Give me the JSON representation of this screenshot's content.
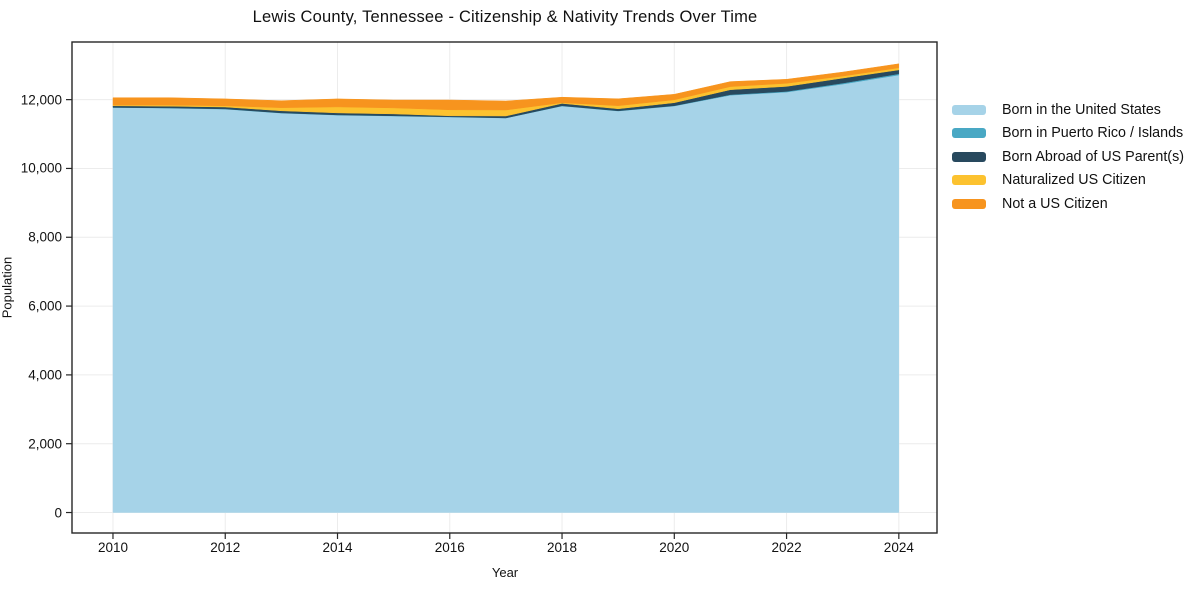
{
  "chart_data": {
    "type": "area",
    "stacked": true,
    "title": "Lewis County, Tennessee - Citizenship & Nativity Trends Over Time",
    "xlabel": "Year",
    "ylabel": "Population",
    "x": [
      2010,
      2011,
      2012,
      2013,
      2014,
      2015,
      2016,
      2017,
      2018,
      2019,
      2020,
      2021,
      2022,
      2023,
      2024
    ],
    "series": [
      {
        "name": "Born in the United States",
        "color": "#a6d3e8",
        "values": [
          11770,
          11755,
          11725,
          11610,
          11550,
          11525,
          11495,
          11465,
          11815,
          11670,
          11815,
          12130,
          12220,
          12450,
          12715
        ]
      },
      {
        "name": "Born in Puerto Rico / Islands",
        "color": "#49a8c4",
        "values": [
          5,
          5,
          5,
          5,
          5,
          5,
          5,
          5,
          5,
          5,
          10,
          15,
          20,
          30,
          35
        ]
      },
      {
        "name": "Born Abroad of US Parent(s)",
        "color": "#28495e",
        "values": [
          45,
          50,
          55,
          60,
          60,
          55,
          30,
          55,
          70,
          60,
          85,
          145,
          145,
          145,
          115
        ]
      },
      {
        "name": "Naturalized US Citizen",
        "color": "#fcc22f",
        "values": [
          25,
          30,
          35,
          90,
          175,
          175,
          175,
          175,
          20,
          90,
          85,
          90,
          90,
          60,
          60
        ]
      },
      {
        "name": "Not a US Citizen",
        "color": "#f7941e",
        "values": [
          210,
          215,
          200,
          205,
          230,
          230,
          285,
          260,
          160,
          200,
          160,
          145,
          115,
          115,
          115
        ]
      }
    ],
    "xticks": {
      "values": [
        2010,
        2012,
        2014,
        2016,
        2018,
        2020,
        2022,
        2024
      ],
      "labels": [
        "2010",
        "2012",
        "2014",
        "2016",
        "2018",
        "2020",
        "2022",
        "2024"
      ]
    },
    "yticks": {
      "values": [
        0,
        2000,
        4000,
        6000,
        8000,
        10000,
        12000
      ],
      "labels": [
        "0",
        "2,000",
        "4,000",
        "6,000",
        "8,000",
        "10,000",
        "12,000"
      ]
    },
    "xlim": [
      2009.27,
      2024.68
    ],
    "ylim": [
      -595,
      13675
    ],
    "grid": true,
    "legend_position": "right-outside"
  },
  "style": {
    "gridline_color": "#ececec",
    "spine_color": "#262626",
    "tick_color": "#262626",
    "plot_bg": "#ffffff"
  }
}
